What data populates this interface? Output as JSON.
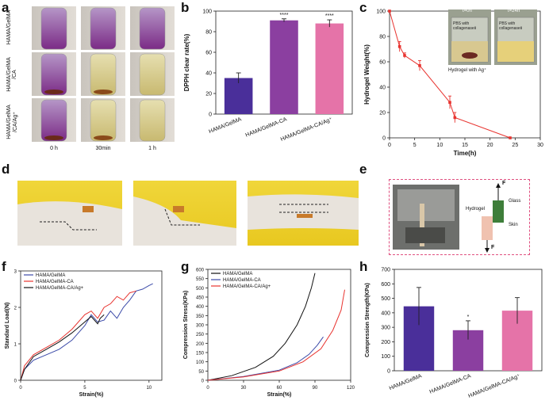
{
  "letters": {
    "a": "a",
    "b": "b",
    "c": "c",
    "d": "d",
    "e": "e",
    "f": "f",
    "g": "g",
    "h": "h"
  },
  "panel_a": {
    "rows": [
      "HAMA/GelMA",
      "HAMA/GelMA\n/CA",
      "HAMA/GelMA\n/CA/Ag⁺"
    ],
    "cols": [
      "0 h",
      "30min",
      "1 h"
    ]
  },
  "panel_c_inset": {
    "t0": "t=0h",
    "t24": "t=24h",
    "vial_text": "PBS with\ncollagenaseⅡ",
    "caption": "Hydrogel with Ag⁺"
  },
  "panel_e": {
    "force_top": "F",
    "force_bottom": "F",
    "glass": "Glass",
    "hydrogel": "Hydrogel",
    "skin": "Skin"
  },
  "chart_data": [
    {
      "id": "b",
      "type": "bar",
      "categories": [
        "HAMA/GelMA",
        "HAMA/GelMA-CA",
        "HAMA/GelMA-CA/Ag⁺"
      ],
      "values": [
        35,
        91,
        88
      ],
      "errors": [
        5,
        1.5,
        3.5
      ],
      "significance": [
        "",
        "****",
        "****"
      ],
      "colors": [
        "#4a2f9a",
        "#8b3fa0",
        "#e573a8"
      ],
      "ylabel": "DPPH clear rate(%)",
      "ylim": [
        0,
        100
      ],
      "yticks": [
        0,
        20,
        40,
        60,
        80,
        100
      ]
    },
    {
      "id": "c",
      "type": "line",
      "x": [
        0,
        2,
        3,
        6,
        12,
        13,
        24
      ],
      "y": [
        100,
        72,
        65,
        57,
        28,
        16,
        0
      ],
      "errors": [
        0,
        4,
        2,
        4,
        5,
        4,
        0
      ],
      "color": "#e8332f",
      "xlabel": "Time(h)",
      "ylabel": "Hydrogel Weight(%)",
      "xlim": [
        0,
        30
      ],
      "ylim": [
        0,
        100
      ],
      "xticks": [
        0,
        5,
        10,
        15,
        20,
        25,
        30
      ],
      "yticks": [
        0,
        20,
        40,
        60,
        80,
        100
      ]
    },
    {
      "id": "f",
      "type": "line",
      "xlabel": "Strain(%)",
      "ylabel": "Standard Load(N)",
      "xlim": [
        0,
        11
      ],
      "ylim": [
        0,
        3
      ],
      "xticks": [
        0,
        5,
        10
      ],
      "yticks": [
        0,
        1,
        2,
        3
      ],
      "series": [
        {
          "name": "HAMA/GelMA",
          "color": "#3b4aa8",
          "x": [
            0,
            0.3,
            1,
            2,
            3,
            4,
            5,
            5.5,
            6,
            6.5,
            7,
            7.5,
            8,
            8.5,
            9,
            9.5,
            10,
            10.3
          ],
          "y": [
            0,
            0.3,
            0.55,
            0.7,
            0.85,
            1.1,
            1.5,
            1.8,
            1.6,
            1.65,
            1.9,
            1.7,
            2.0,
            2.2,
            2.45,
            2.5,
            2.6,
            2.65
          ]
        },
        {
          "name": "HAMA/GelMA-CA",
          "color": "#e8332f",
          "x": [
            0,
            0.3,
            1,
            2,
            3,
            4,
            5,
            5.5,
            6,
            6.5,
            7,
            7.5,
            8,
            8.5,
            9
          ],
          "y": [
            0,
            0.4,
            0.7,
            0.9,
            1.1,
            1.4,
            1.8,
            1.9,
            1.7,
            2.0,
            2.1,
            2.3,
            2.2,
            2.4,
            2.45
          ]
        },
        {
          "name": "HAMA/GelMA-CA/Ag+",
          "color": "#111111",
          "x": [
            0,
            0.3,
            1,
            2,
            3,
            4,
            5,
            5.5,
            6,
            6.2,
            6.5
          ],
          "y": [
            0,
            0.3,
            0.65,
            0.85,
            1.05,
            1.3,
            1.6,
            1.75,
            1.55,
            1.7,
            1.8
          ]
        }
      ]
    },
    {
      "id": "g",
      "type": "line",
      "xlabel": "Strain(%)",
      "ylabel": "Compression Stress(KPa)",
      "xlim": [
        0,
        120
      ],
      "ylim": [
        0,
        600
      ],
      "xticks": [
        0,
        30,
        60,
        90,
        120
      ],
      "yticks": [
        0,
        50,
        100,
        150,
        200,
        250,
        300,
        350,
        400,
        450,
        500,
        550,
        600
      ],
      "series": [
        {
          "name": "HAMA/GelMA",
          "color": "#111111",
          "x": [
            0,
            20,
            40,
            55,
            65,
            75,
            82,
            87,
            90
          ],
          "y": [
            0,
            25,
            70,
            130,
            200,
            300,
            400,
            500,
            580
          ]
        },
        {
          "name": "HAMA/GelMA-CA",
          "color": "#3b4aa8",
          "x": [
            0,
            30,
            60,
            75,
            85,
            92,
            97
          ],
          "y": [
            0,
            20,
            55,
            95,
            140,
            190,
            235
          ]
        },
        {
          "name": "HAMA/GelMA-CA/Ag+",
          "color": "#e8332f",
          "x": [
            0,
            30,
            60,
            80,
            95,
            105,
            112,
            115
          ],
          "y": [
            0,
            18,
            50,
            100,
            170,
            270,
            380,
            490
          ]
        }
      ]
    },
    {
      "id": "h",
      "type": "bar",
      "categories": [
        "HAMA/GelMA",
        "HAMA/GelMA-CA",
        "HAMA/GelMA-CA/Ag⁺"
      ],
      "values": [
        445,
        280,
        415
      ],
      "errors": [
        130,
        65,
        90
      ],
      "significance": [
        "",
        "*",
        ""
      ],
      "colors": [
        "#4a2f9a",
        "#8b3fa0",
        "#e573a8"
      ],
      "ylabel": "Compression Strength(KPa)",
      "ylim": [
        0,
        700
      ],
      "yticks": [
        0,
        100,
        200,
        300,
        400,
        500,
        600,
        700
      ]
    }
  ]
}
